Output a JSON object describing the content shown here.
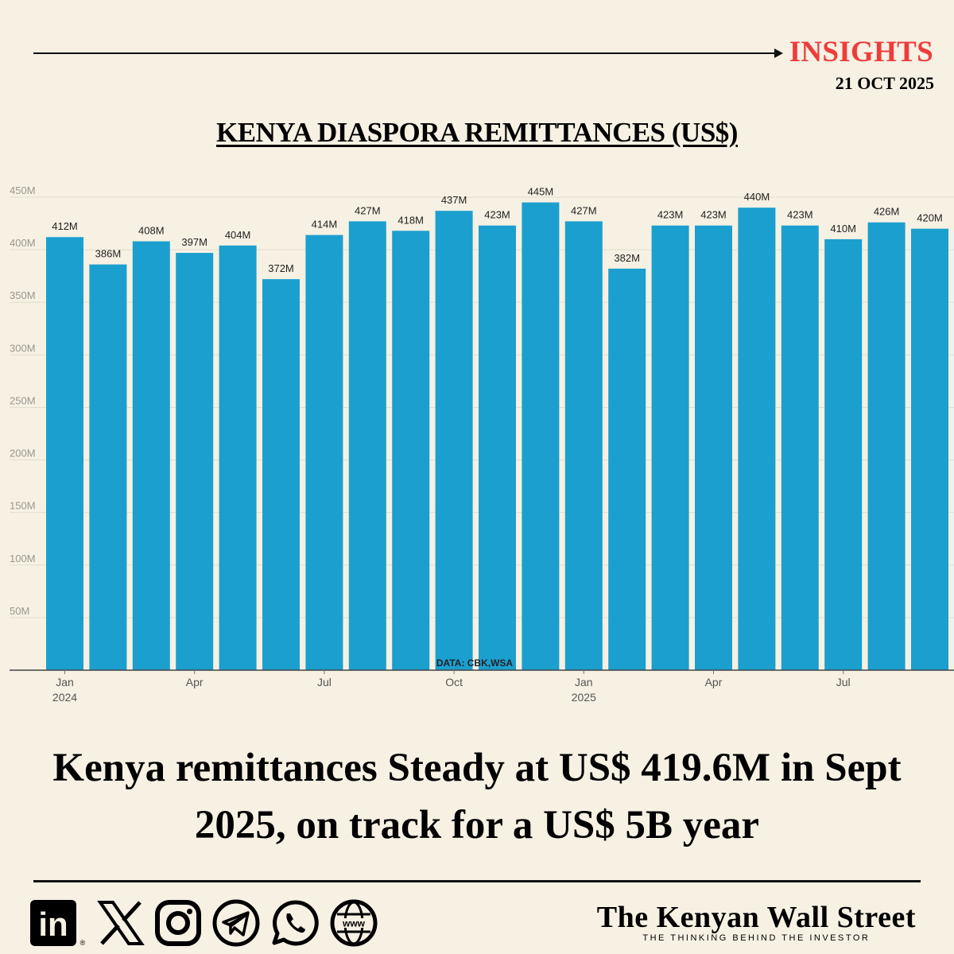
{
  "header": {
    "section_label": "INSIGHTS",
    "date": "21 OCT 2025",
    "accent_color": "#ef3b3b"
  },
  "chart_title": "KENYA DIASPORA REMITTANCES (US$)",
  "chart_data": {
    "type": "bar",
    "title": "KENYA DIASPORA REMITTANCES (US$)",
    "xlabel": "",
    "ylabel": "",
    "ylim": [
      0,
      450
    ],
    "yticks": [
      50,
      100,
      150,
      200,
      250,
      300,
      350,
      400,
      450
    ],
    "ytick_labels": [
      "50M",
      "100M",
      "150M",
      "200M",
      "250M",
      "300M",
      "350M",
      "400M",
      "450M"
    ],
    "categories": [
      "Jan 2024",
      "Feb 2024",
      "Mar 2024",
      "Apr 2024",
      "May 2024",
      "Jun 2024",
      "Jul 2024",
      "Aug 2024",
      "Sep 2024",
      "Oct 2024",
      "Nov 2024",
      "Dec 2024",
      "Jan 2025",
      "Feb 2025",
      "Mar 2025",
      "Apr 2025",
      "May 2025",
      "Jun 2025",
      "Jul 2025",
      "Aug 2025",
      "Sep 2025"
    ],
    "values": [
      412,
      386,
      408,
      397,
      404,
      372,
      414,
      427,
      418,
      437,
      423,
      445,
      427,
      382,
      423,
      423,
      440,
      423,
      410,
      426,
      420
    ],
    "data_labels": [
      "412M",
      "386M",
      "408M",
      "397M",
      "404M",
      "372M",
      "414M",
      "427M",
      "418M",
      "437M",
      "423M",
      "445M",
      "427M",
      "382M",
      "423M",
      "423M",
      "440M",
      "423M",
      "410M",
      "426M",
      "420M"
    ],
    "x_tick_labels": [
      {
        "index": 0,
        "label": "Jan",
        "sublabel": "2024"
      },
      {
        "index": 3,
        "label": "Apr",
        "sublabel": ""
      },
      {
        "index": 6,
        "label": "Jul",
        "sublabel": ""
      },
      {
        "index": 9,
        "label": "Oct",
        "sublabel": ""
      },
      {
        "index": 12,
        "label": "Jan",
        "sublabel": "2025"
      },
      {
        "index": 15,
        "label": "Apr",
        "sublabel": ""
      },
      {
        "index": 18,
        "label": "Jul",
        "sublabel": ""
      }
    ],
    "source_note": "DATA: CBK,WSA",
    "bar_color": "#1b9fcf",
    "grid": true
  },
  "headline": "Kenya remittances Steady at US$ 419.6M in Sept 2025, on track for a US$ 5B year",
  "footer": {
    "brand_name": "The Kenyan Wall Street",
    "tagline": "THE THINKING BEHIND THE INVESTOR",
    "linkedin_text": "in",
    "web_text": "www"
  }
}
